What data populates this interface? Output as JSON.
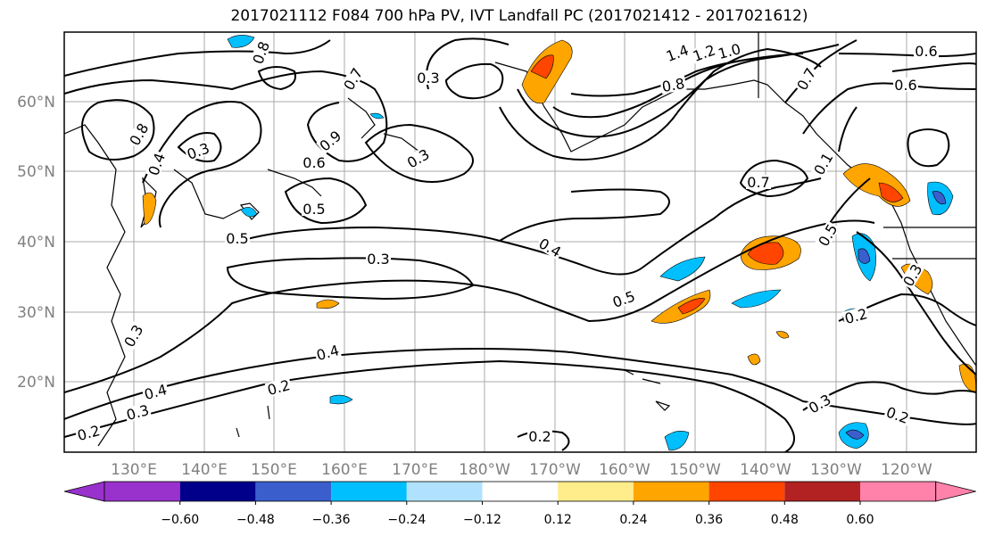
{
  "title": "2017021112 F084 700 hPa PV, IVT Landfall PC (2017021412 - 2017021612)",
  "colors": {
    "map_border": "#000000",
    "grid": "#a9a9a9",
    "axis_label": "#808080",
    "contour": "#000000"
  },
  "lat_labels": [
    "60°N",
    "50°N",
    "40°N",
    "30°N",
    "20°N"
  ],
  "lon_labels": [
    "130°E",
    "140°E",
    "150°E",
    "160°E",
    "170°E",
    "180°W",
    "170°W",
    "160°W",
    "150°W",
    "140°W",
    "130°W",
    "120°W"
  ],
  "contour_labels": [
    "0.8",
    "0.7",
    "0.3",
    "1.4",
    "1.2",
    "1.0",
    "0.8",
    "0.7",
    "0.6",
    "0.6",
    "0.8",
    "0.4",
    "0.3",
    "0.9",
    "0.6",
    "0.5",
    "0.3",
    "0.7",
    "0.5",
    "0.5",
    "0.3",
    "0.4",
    "0.5",
    "0.3",
    "0.4",
    "0.2",
    "0.4",
    "0.3",
    "0.2",
    "0.3",
    "0.2",
    "0.2",
    "0.3",
    "0.1",
    "0.2"
  ],
  "colorbar": {
    "colors": [
      "#9932cc",
      "#00008b",
      "#3a5fcd",
      "#00bfff",
      "#b0e2ff",
      "#ffffff",
      "#ffec8b",
      "#ffa500",
      "#ff4500",
      "#b22222",
      "#ff82ab"
    ],
    "ticks": [
      "−0.60",
      "−0.48",
      "−0.36",
      "−0.24",
      "−0.12",
      "0.12",
      "0.24",
      "0.36",
      "0.48",
      "0.60"
    ]
  }
}
